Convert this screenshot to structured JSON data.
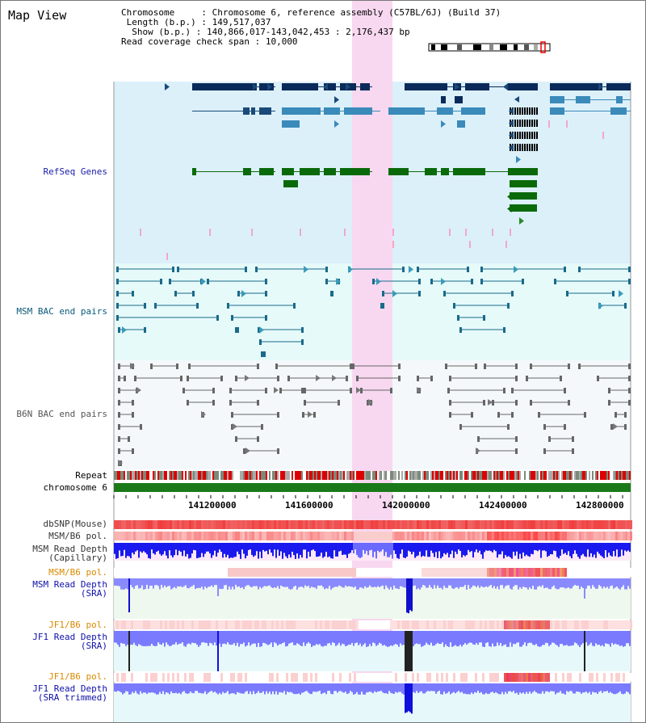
{
  "app": {
    "title": "Map View"
  },
  "info": {
    "chromosome_key": "Chromosome     ",
    "chromosome_val": ": Chromosome 6, reference assembly (C57BL/6J) (Build 37)",
    "length_key": " Length (b.p.) ",
    "length_val": ": 149,517,037",
    "show_key": "  Show (b.p.) ",
    "show_val": ": 140,866,017-143,042,453 : 2,176,437 bp",
    "coverage_key": "Read coverage check span",
    "coverage_val": ": 10,000"
  },
  "tracks": {
    "refseq": "RefSeq Genes",
    "msm_bac": "MSM BAC end pairs",
    "b6n_bac": "B6N BAC end pairs",
    "repeat": "Repeat",
    "chromosome": "chromosome 6",
    "dbsnp": "dbSNP(Mouse)",
    "msm_b6_pol": "MSM/B6 pol.",
    "msm_depth_cap": "MSM Read Depth\n(Capillary)",
    "msm_b6_pol2": "MSM/B6 pol.",
    "msm_depth_sra": "MSM Read Depth\n(SRA)",
    "jf1_b6_pol": "JF1/B6 pol.",
    "jf1_depth_sra": "JF1 Read Depth\n(SRA)",
    "jf1_b6_pol2": "JF1/B6 pol.",
    "jf1_depth_trim": "JF1 Read Depth\n(SRA trimmed)"
  },
  "axis": {
    "ticks": [
      "141200000",
      "141600000",
      "142000000",
      "142400000",
      "142800000"
    ]
  },
  "colors": {
    "refseq_bg": "#dcf0fa",
    "bac_bg": "#e6fafa",
    "b6n_bg": "#f4f8fb",
    "highlight": "#f8d8f0",
    "gene_dark": "#0a2a5a",
    "gene_mid": "#3a8aba",
    "gene_green": "#0a6a0a",
    "msm_label": "#0a5a7a",
    "refseq_label": "#1a1aaa",
    "orange_label": "#d88a00",
    "depth_label": "#1010aa"
  }
}
